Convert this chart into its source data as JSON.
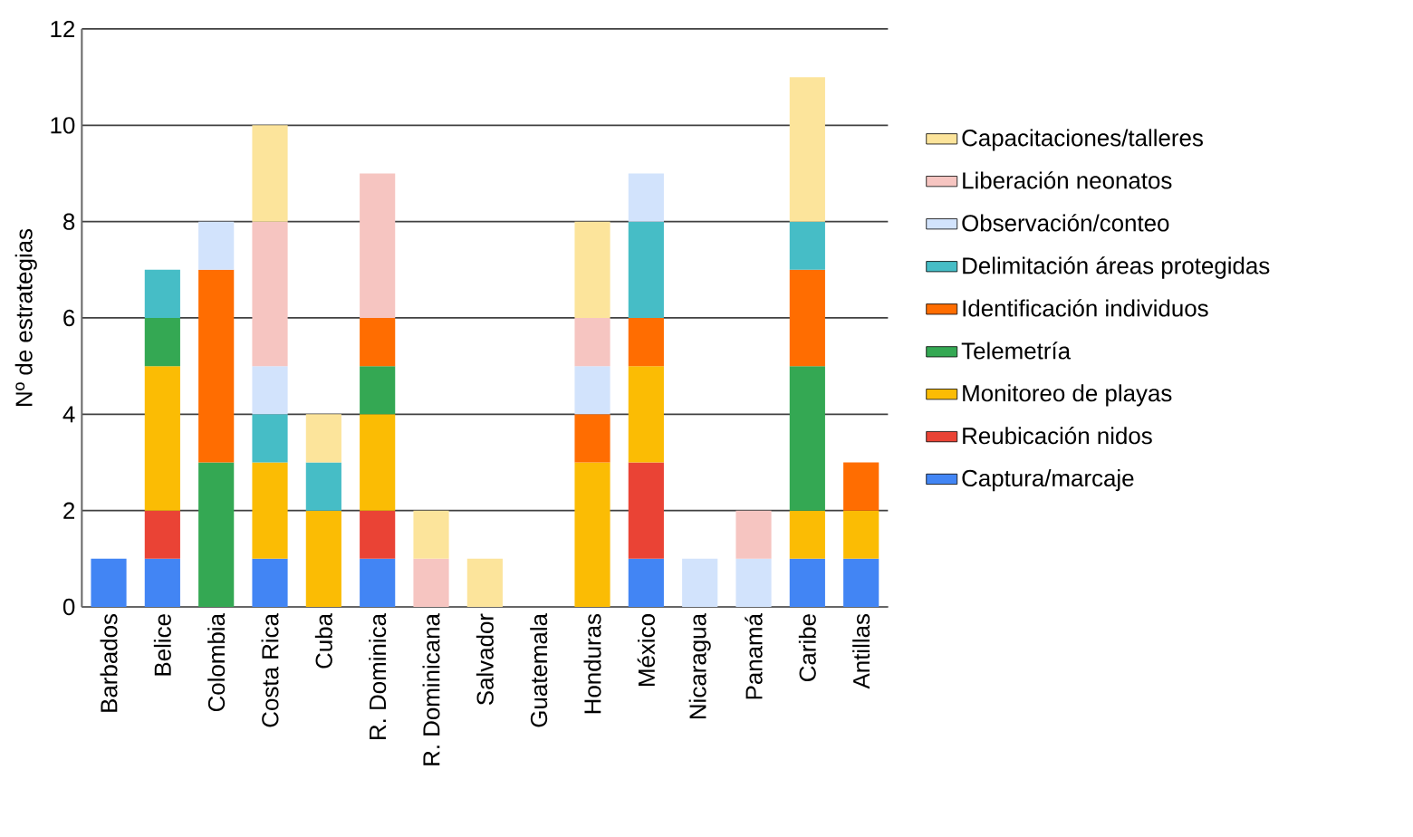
{
  "chart_data": {
    "type": "bar",
    "stacked": true,
    "ylabel": "Nº de estrategias",
    "ylim": [
      0,
      12
    ],
    "yticks": [
      0,
      2,
      4,
      6,
      8,
      10,
      12
    ],
    "grid": "y",
    "legend": "right",
    "categories": [
      "Barbados",
      "Belice",
      "Colombia",
      "Costa Rica",
      "Cuba",
      "R. Dominica",
      "R. Dominicana",
      "Salvador",
      "Guatemala",
      "Honduras",
      "México",
      "Nicaragua",
      "Panamá",
      "Caribe",
      "Antillas"
    ],
    "series": [
      {
        "name": "Captura/marcaje",
        "color": "#4285f4",
        "values": [
          1,
          1,
          null,
          1,
          null,
          1,
          null,
          null,
          null,
          null,
          1,
          null,
          null,
          1,
          1
        ]
      },
      {
        "name": "Reubicación nidos",
        "color": "#ea4335",
        "values": [
          null,
          1,
          null,
          null,
          null,
          1,
          null,
          null,
          null,
          null,
          2,
          null,
          null,
          null,
          null
        ]
      },
      {
        "name": "Monitoreo de playas",
        "color": "#fbbc04",
        "values": [
          null,
          3,
          null,
          2,
          2,
          2,
          null,
          null,
          null,
          3,
          2,
          null,
          null,
          1,
          1
        ]
      },
      {
        "name": "Telemetría",
        "color": "#34a853",
        "values": [
          null,
          1,
          3,
          null,
          null,
          1,
          null,
          null,
          null,
          null,
          null,
          null,
          null,
          3,
          null
        ]
      },
      {
        "name": "Identificación individuos",
        "color": "#ff6d01",
        "values": [
          null,
          null,
          4,
          null,
          null,
          1,
          null,
          null,
          null,
          1,
          1,
          null,
          null,
          2,
          1
        ]
      },
      {
        "name": "Delimitación áreas protegidas",
        "color": "#46bdc6",
        "values": [
          null,
          1,
          null,
          1,
          1,
          null,
          null,
          null,
          null,
          null,
          2,
          null,
          null,
          1,
          null
        ]
      },
      {
        "name": "Observación/conteo",
        "color": "#d2e3fc",
        "values": [
          null,
          null,
          1,
          1,
          null,
          null,
          null,
          null,
          null,
          1,
          1,
          1,
          1,
          null,
          null
        ]
      },
      {
        "name": "Liberación neonatos",
        "color": "#f6c5c1",
        "values": [
          null,
          null,
          null,
          3,
          null,
          3,
          1,
          null,
          null,
          1,
          null,
          null,
          1,
          null,
          null
        ]
      },
      {
        "name": "Capacitaciones/talleres",
        "color": "#fce49b",
        "values": [
          null,
          null,
          null,
          2,
          1,
          null,
          1,
          1,
          null,
          2,
          null,
          null,
          null,
          3,
          null
        ]
      }
    ]
  }
}
